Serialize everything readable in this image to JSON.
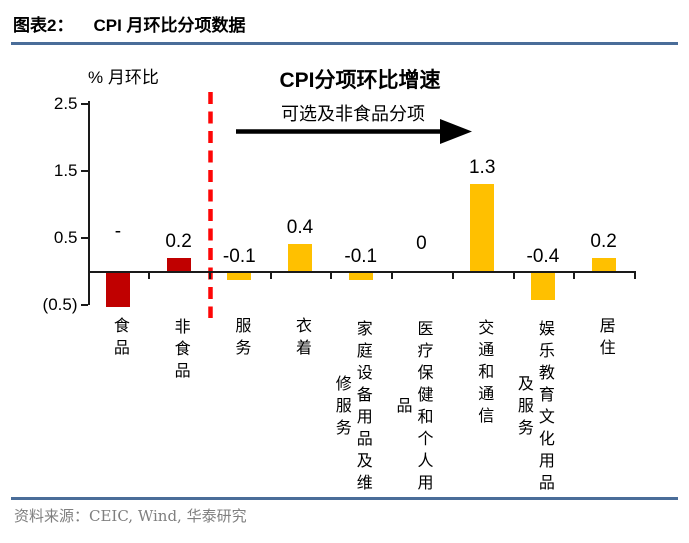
{
  "header": {
    "figure_label": "图表2：",
    "title": "CPI 月环比分项数据"
  },
  "footer": {
    "source": "资料来源：CEIC, Wind, 华泰研究"
  },
  "colors": {
    "rule": "#4a6d99",
    "dark_red_bar": "#c00000",
    "amber_bar": "#ffc000",
    "divider_red": "#fe0606",
    "axis": "#1a1a1a",
    "source_text": "#7f7f7f"
  },
  "chart_data": {
    "type": "bar",
    "title": "CPI分项环比增速",
    "annotation": "可选及非食品分项",
    "ylabel": "% 月环比",
    "ylim": [
      -0.5,
      2.5
    ],
    "yticks": [
      2.5,
      1.5,
      0.5,
      -0.5
    ],
    "ytick_labels": [
      "2.5",
      "1.5",
      "0.5",
      "(0.5)"
    ],
    "categories": [
      "食品",
      "非食品",
      "服务",
      "衣着",
      "家庭设备用品及维修服务",
      "医疗保健和个人用品",
      "交通和通信",
      "娱乐教育文化用品及服务",
      "居住"
    ],
    "category_lines": [
      [
        "食品"
      ],
      [
        "非食品"
      ],
      [
        "服务"
      ],
      [
        "衣着"
      ],
      [
        "家庭设备用品及维",
        "修服务"
      ],
      [
        "医疗保健和个人用",
        "品"
      ],
      [
        "交通和通信"
      ],
      [
        "娱乐教育文化用品",
        "及服务"
      ],
      [
        "居住"
      ]
    ],
    "values": [
      -0.5,
      0.2,
      -0.1,
      0.4,
      -0.1,
      0,
      1.3,
      -0.4,
      0.2
    ],
    "value_labels": [
      "-",
      "0.2",
      "-0.1",
      "0.4",
      "-0.1",
      "0",
      "1.3",
      "-0.4",
      "0.2"
    ],
    "bar_colors": [
      "#c00000",
      "#c00000",
      "#ffc000",
      "#ffc000",
      "#ffc000",
      "#ffc000",
      "#ffc000",
      "#ffc000",
      "#ffc000"
    ],
    "divider_after_category_index": 1,
    "grid": false,
    "legend": false
  }
}
